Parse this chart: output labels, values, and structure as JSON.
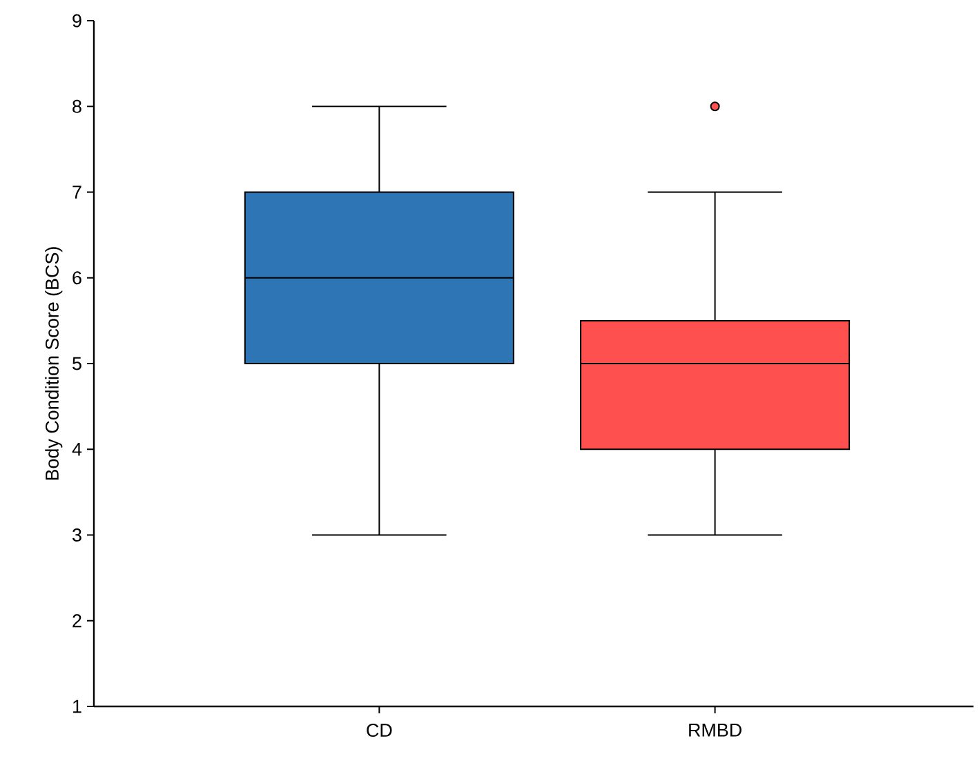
{
  "chart_data": {
    "type": "box",
    "ylabel": "Body Condition Score (BCS)",
    "categories": [
      "CD",
      "RMBD"
    ],
    "colors": [
      "#2e75b6",
      "#ff5050"
    ],
    "boxes": [
      {
        "low": 3,
        "q1": 5,
        "median": 6,
        "q3": 7,
        "high": 8
      },
      {
        "low": 3,
        "q1": 4,
        "median": 5,
        "q3": 5.5,
        "high": 7,
        "outliers": [
          8
        ]
      }
    ],
    "ylim": [
      1,
      9
    ],
    "yticks": [
      1,
      2,
      3,
      4,
      5,
      6,
      7,
      8,
      9
    ]
  }
}
